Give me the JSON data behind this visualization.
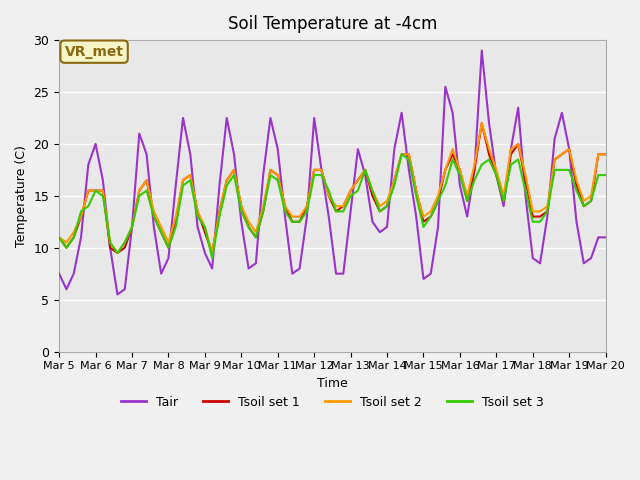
{
  "title": "Soil Temperature at -4cm",
  "xlabel": "Time",
  "ylabel": "Temperature (C)",
  "ylim": [
    0,
    30
  ],
  "xlim": [
    0,
    15
  ],
  "background_color": "#f0f0f0",
  "plot_bg_color": "#e8e8e8",
  "grid_color": "#ffffff",
  "annotation_text": "VR_met",
  "annotation_bg": "#f5f5c8",
  "annotation_border": "#8b6914",
  "x_ticks": [
    0,
    1,
    2,
    3,
    4,
    5,
    6,
    7,
    8,
    9,
    10,
    11,
    12,
    13,
    14,
    15
  ],
  "x_tick_labels": [
    "Mar 5",
    "Mar 6",
    "Mar 7",
    "Mar 8",
    "Mar 9",
    "Mar 10",
    "Mar 11",
    "Mar 12",
    "Mar 13",
    "Mar 14",
    "Mar 15",
    "Mar 16",
    "Mar 17",
    "Mar 18",
    "Mar 19",
    "Mar 20"
  ],
  "y_ticks": [
    0,
    5,
    10,
    15,
    20,
    25,
    30
  ],
  "series": {
    "Tair": {
      "color": "#9933cc",
      "lw": 1.5,
      "x": [
        0.0,
        0.2,
        0.4,
        0.6,
        0.8,
        1.0,
        1.2,
        1.4,
        1.6,
        1.8,
        2.0,
        2.2,
        2.4,
        2.6,
        2.8,
        3.0,
        3.2,
        3.4,
        3.6,
        3.8,
        4.0,
        4.2,
        4.4,
        4.6,
        4.8,
        5.0,
        5.2,
        5.4,
        5.6,
        5.8,
        6.0,
        6.2,
        6.4,
        6.6,
        6.8,
        7.0,
        7.2,
        7.4,
        7.6,
        7.8,
        8.0,
        8.2,
        8.4,
        8.6,
        8.8,
        9.0,
        9.2,
        9.4,
        9.6,
        9.8,
        10.0,
        10.2,
        10.4,
        10.6,
        10.8,
        11.0,
        11.2,
        11.4,
        11.6,
        11.8,
        12.0,
        12.2,
        12.4,
        12.6,
        12.8,
        13.0,
        13.2,
        13.4,
        13.6,
        13.8,
        14.0,
        14.2,
        14.4,
        14.6,
        14.8,
        15.0
      ],
      "y": [
        7.5,
        6.0,
        7.5,
        11.0,
        18.0,
        20.0,
        16.5,
        10.0,
        5.5,
        6.0,
        12.0,
        21.0,
        19.0,
        12.0,
        7.5,
        9.0,
        16.0,
        22.5,
        19.0,
        12.0,
        9.5,
        8.0,
        16.0,
        22.5,
        19.0,
        12.5,
        8.0,
        8.5,
        17.0,
        22.5,
        19.5,
        13.0,
        7.5,
        8.0,
        13.0,
        22.5,
        17.5,
        13.0,
        7.5,
        7.5,
        13.5,
        19.5,
        17.0,
        12.5,
        11.5,
        12.0,
        19.5,
        23.0,
        17.5,
        13.0,
        7.0,
        7.5,
        12.0,
        25.5,
        23.0,
        16.0,
        13.0,
        17.5,
        29.0,
        22.0,
        17.0,
        14.0,
        19.5,
        23.5,
        15.0,
        9.0,
        8.5,
        13.0,
        20.5,
        23.0,
        19.5,
        12.5,
        8.5,
        9.0,
        11.0,
        11.0
      ]
    },
    "Tsoil1": {
      "color": "#cc0000",
      "lw": 1.5,
      "x": [
        0.0,
        0.2,
        0.4,
        0.6,
        0.8,
        1.0,
        1.2,
        1.4,
        1.6,
        1.8,
        2.0,
        2.2,
        2.4,
        2.6,
        2.8,
        3.0,
        3.2,
        3.4,
        3.6,
        3.8,
        4.0,
        4.2,
        4.4,
        4.6,
        4.8,
        5.0,
        5.2,
        5.4,
        5.6,
        5.8,
        6.0,
        6.2,
        6.4,
        6.6,
        6.8,
        7.0,
        7.2,
        7.4,
        7.6,
        7.8,
        8.0,
        8.2,
        8.4,
        8.6,
        8.8,
        9.0,
        9.2,
        9.4,
        9.6,
        9.8,
        10.0,
        10.2,
        10.4,
        10.6,
        10.8,
        11.0,
        11.2,
        11.4,
        11.6,
        11.8,
        12.0,
        12.2,
        12.4,
        12.6,
        12.8,
        13.0,
        13.2,
        13.4,
        13.6,
        13.8,
        14.0,
        14.2,
        14.4,
        14.6,
        14.8,
        15.0
      ],
      "y": [
        11.0,
        10.0,
        11.0,
        13.0,
        15.5,
        15.5,
        15.5,
        10.0,
        9.5,
        10.0,
        12.0,
        15.5,
        16.5,
        13.0,
        11.5,
        10.0,
        12.5,
        16.5,
        17.0,
        13.5,
        11.5,
        9.5,
        13.5,
        16.5,
        17.5,
        14.0,
        12.0,
        11.0,
        13.5,
        17.5,
        17.0,
        14.0,
        12.5,
        12.5,
        14.0,
        17.5,
        17.5,
        15.0,
        13.5,
        14.0,
        15.5,
        16.5,
        17.5,
        15.0,
        13.5,
        14.0,
        16.5,
        19.0,
        19.0,
        15.5,
        12.5,
        13.0,
        14.5,
        17.5,
        19.0,
        17.5,
        14.5,
        17.5,
        22.0,
        19.0,
        17.0,
        14.5,
        19.0,
        20.0,
        16.5,
        13.0,
        13.0,
        13.5,
        18.5,
        19.0,
        19.5,
        16.0,
        14.0,
        14.5,
        19.0,
        19.0
      ]
    },
    "Tsoil2": {
      "color": "#ff9900",
      "lw": 1.5,
      "x": [
        0.0,
        0.2,
        0.4,
        0.6,
        0.8,
        1.0,
        1.2,
        1.4,
        1.6,
        1.8,
        2.0,
        2.2,
        2.4,
        2.6,
        2.8,
        3.0,
        3.2,
        3.4,
        3.6,
        3.8,
        4.0,
        4.2,
        4.4,
        4.6,
        4.8,
        5.0,
        5.2,
        5.4,
        5.6,
        5.8,
        6.0,
        6.2,
        6.4,
        6.6,
        6.8,
        7.0,
        7.2,
        7.4,
        7.6,
        7.8,
        8.0,
        8.2,
        8.4,
        8.6,
        8.8,
        9.0,
        9.2,
        9.4,
        9.6,
        9.8,
        10.0,
        10.2,
        10.4,
        10.6,
        10.8,
        11.0,
        11.2,
        11.4,
        11.6,
        11.8,
        12.0,
        12.2,
        12.4,
        12.6,
        12.8,
        13.0,
        13.2,
        13.4,
        13.6,
        13.8,
        14.0,
        14.2,
        14.4,
        14.6,
        14.8,
        15.0
      ],
      "y": [
        11.0,
        10.5,
        11.5,
        13.0,
        15.5,
        15.5,
        15.5,
        10.5,
        9.5,
        10.5,
        12.0,
        15.5,
        16.5,
        13.5,
        12.0,
        10.5,
        13.0,
        16.5,
        17.0,
        13.5,
        12.0,
        9.5,
        13.5,
        16.5,
        17.5,
        14.0,
        12.5,
        11.5,
        14.0,
        17.5,
        17.0,
        14.0,
        13.0,
        13.0,
        14.0,
        17.5,
        17.5,
        15.0,
        14.0,
        14.0,
        15.5,
        16.5,
        17.5,
        15.5,
        14.0,
        14.5,
        16.5,
        19.0,
        19.0,
        15.5,
        13.0,
        13.5,
        15.0,
        17.5,
        19.5,
        17.5,
        15.0,
        18.0,
        22.0,
        19.5,
        17.5,
        15.0,
        19.5,
        20.0,
        17.0,
        13.5,
        13.5,
        14.0,
        18.5,
        19.0,
        19.5,
        16.5,
        14.5,
        15.0,
        19.0,
        19.0
      ]
    },
    "Tsoil3": {
      "color": "#33cc00",
      "lw": 1.5,
      "x": [
        0.0,
        0.2,
        0.4,
        0.6,
        0.8,
        1.0,
        1.2,
        1.4,
        1.6,
        1.8,
        2.0,
        2.2,
        2.4,
        2.6,
        2.8,
        3.0,
        3.2,
        3.4,
        3.6,
        3.8,
        4.0,
        4.2,
        4.4,
        4.6,
        4.8,
        5.0,
        5.2,
        5.4,
        5.6,
        5.8,
        6.0,
        6.2,
        6.4,
        6.6,
        6.8,
        7.0,
        7.2,
        7.4,
        7.6,
        7.8,
        8.0,
        8.2,
        8.4,
        8.6,
        8.8,
        9.0,
        9.2,
        9.4,
        9.6,
        9.8,
        10.0,
        10.2,
        10.4,
        10.6,
        10.8,
        11.0,
        11.2,
        11.4,
        11.6,
        11.8,
        12.0,
        12.2,
        12.4,
        12.6,
        12.8,
        13.0,
        13.2,
        13.4,
        13.6,
        13.8,
        14.0,
        14.2,
        14.4,
        14.6,
        14.8,
        15.0
      ],
      "y": [
        11.0,
        10.0,
        11.0,
        13.5,
        14.0,
        15.5,
        15.0,
        10.5,
        9.5,
        10.5,
        12.0,
        15.0,
        15.5,
        13.0,
        11.5,
        10.0,
        12.0,
        16.0,
        16.5,
        13.0,
        12.0,
        9.0,
        13.0,
        16.0,
        17.0,
        13.5,
        12.0,
        11.0,
        13.5,
        17.0,
        16.5,
        13.5,
        12.5,
        12.5,
        13.5,
        17.0,
        17.0,
        15.5,
        13.5,
        13.5,
        15.0,
        15.5,
        17.5,
        15.5,
        13.5,
        14.0,
        16.0,
        19.0,
        18.5,
        15.0,
        12.0,
        13.0,
        14.5,
        16.0,
        18.5,
        17.0,
        14.5,
        16.5,
        18.0,
        18.5,
        17.0,
        14.5,
        18.0,
        18.5,
        15.5,
        12.5,
        12.5,
        13.5,
        17.5,
        17.5,
        17.5,
        15.5,
        14.0,
        14.5,
        17.0,
        17.0
      ]
    }
  },
  "legend": [
    {
      "label": "Tair",
      "color": "#9933cc"
    },
    {
      "label": "Tsoil set 1",
      "color": "#cc0000"
    },
    {
      "label": "Tsoil set 2",
      "color": "#ff9900"
    },
    {
      "label": "Tsoil set 3",
      "color": "#33cc00"
    }
  ]
}
